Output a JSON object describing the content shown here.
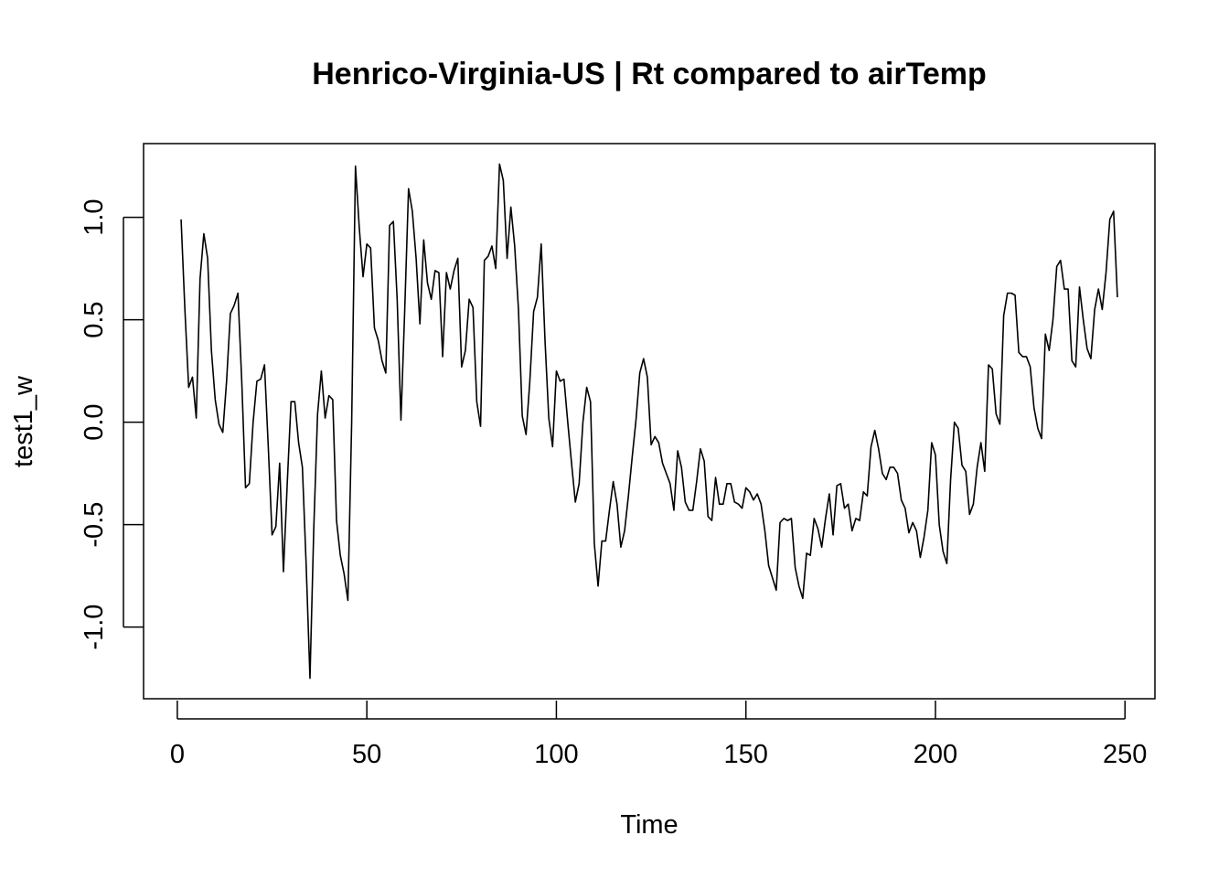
{
  "chart_data": {
    "type": "line",
    "title": "Henrico-Virginia-US | Rt compared to airTemp",
    "xlabel": "Time",
    "ylabel": "test1_w",
    "xlim": [
      -8.9,
      257.9
    ],
    "ylim": [
      -1.35,
      1.36
    ],
    "x_ticks": [
      0,
      50,
      100,
      150,
      200,
      250
    ],
    "x_tick_labels": [
      "0",
      "50",
      "100",
      "150",
      "200",
      "250"
    ],
    "y_ticks": [
      -1.0,
      -0.5,
      0.0,
      0.5,
      1.0
    ],
    "y_tick_labels": [
      "-1.0",
      "-0.5",
      "0.0",
      "0.5",
      "1.0"
    ],
    "grid": false,
    "legend": "none",
    "line_color": "#000000",
    "series": [
      {
        "x_start": 1,
        "x_step": 1,
        "values": [
          0.99,
          0.55,
          0.17,
          0.22,
          0.02,
          0.7,
          0.92,
          0.8,
          0.35,
          0.11,
          -0.01,
          -0.05,
          0.2,
          0.53,
          0.57,
          0.63,
          0.2,
          -0.32,
          -0.3,
          0.0,
          0.2,
          0.21,
          0.28,
          -0.12,
          -0.55,
          -0.51,
          -0.2,
          -0.73,
          -0.3,
          0.1,
          0.1,
          -0.1,
          -0.22,
          -0.7,
          -1.25,
          -0.52,
          0.04,
          0.25,
          0.02,
          0.13,
          0.11,
          -0.48,
          -0.65,
          -0.74,
          -0.87,
          0.0,
          1.25,
          0.95,
          0.71,
          0.87,
          0.85,
          0.46,
          0.4,
          0.3,
          0.24,
          0.96,
          0.98,
          0.6,
          0.01,
          0.55,
          1.14,
          1.03,
          0.8,
          0.48,
          0.89,
          0.68,
          0.6,
          0.74,
          0.73,
          0.32,
          0.73,
          0.65,
          0.74,
          0.8,
          0.27,
          0.35,
          0.6,
          0.56,
          0.1,
          -0.02,
          0.79,
          0.81,
          0.86,
          0.75,
          1.26,
          1.18,
          0.8,
          1.05,
          0.86,
          0.55,
          0.03,
          -0.06,
          0.2,
          0.54,
          0.61,
          0.87,
          0.4,
          0.02,
          -0.12,
          0.25,
          0.2,
          0.21,
          0.0,
          -0.2,
          -0.39,
          -0.3,
          0.0,
          0.17,
          0.1,
          -0.59,
          -0.8,
          -0.58,
          -0.58,
          -0.43,
          -0.29,
          -0.4,
          -0.61,
          -0.53,
          -0.36,
          -0.17,
          0.01,
          0.24,
          0.31,
          0.22,
          -0.11,
          -0.07,
          -0.1,
          -0.2,
          -0.25,
          -0.3,
          -0.43,
          -0.14,
          -0.22,
          -0.39,
          -0.43,
          -0.43,
          -0.29,
          -0.13,
          -0.19,
          -0.46,
          -0.48,
          -0.27,
          -0.4,
          -0.4,
          -0.3,
          -0.3,
          -0.39,
          -0.4,
          -0.42,
          -0.32,
          -0.34,
          -0.38,
          -0.35,
          -0.4,
          -0.53,
          -0.7,
          -0.76,
          -0.82,
          -0.49,
          -0.47,
          -0.48,
          -0.47,
          -0.71,
          -0.8,
          -0.86,
          -0.64,
          -0.65,
          -0.47,
          -0.52,
          -0.61,
          -0.47,
          -0.35,
          -0.55,
          -0.31,
          -0.3,
          -0.42,
          -0.4,
          -0.53,
          -0.47,
          -0.48,
          -0.34,
          -0.36,
          -0.12,
          -0.04,
          -0.13,
          -0.25,
          -0.28,
          -0.22,
          -0.22,
          -0.25,
          -0.38,
          -0.42,
          -0.54,
          -0.49,
          -0.53,
          -0.66,
          -0.56,
          -0.43,
          -0.1,
          -0.16,
          -0.5,
          -0.63,
          -0.69,
          -0.28,
          0.0,
          -0.03,
          -0.21,
          -0.24,
          -0.45,
          -0.4,
          -0.22,
          -0.1,
          -0.24,
          0.28,
          0.26,
          0.04,
          -0.01,
          0.52,
          0.63,
          0.63,
          0.62,
          0.34,
          0.32,
          0.32,
          0.27,
          0.07,
          -0.03,
          -0.08,
          0.43,
          0.35,
          0.5,
          0.76,
          0.79,
          0.65,
          0.65,
          0.3,
          0.27,
          0.66,
          0.5,
          0.36,
          0.31,
          0.55,
          0.65,
          0.55,
          0.73,
          0.99,
          1.03,
          0.61
        ]
      }
    ]
  }
}
